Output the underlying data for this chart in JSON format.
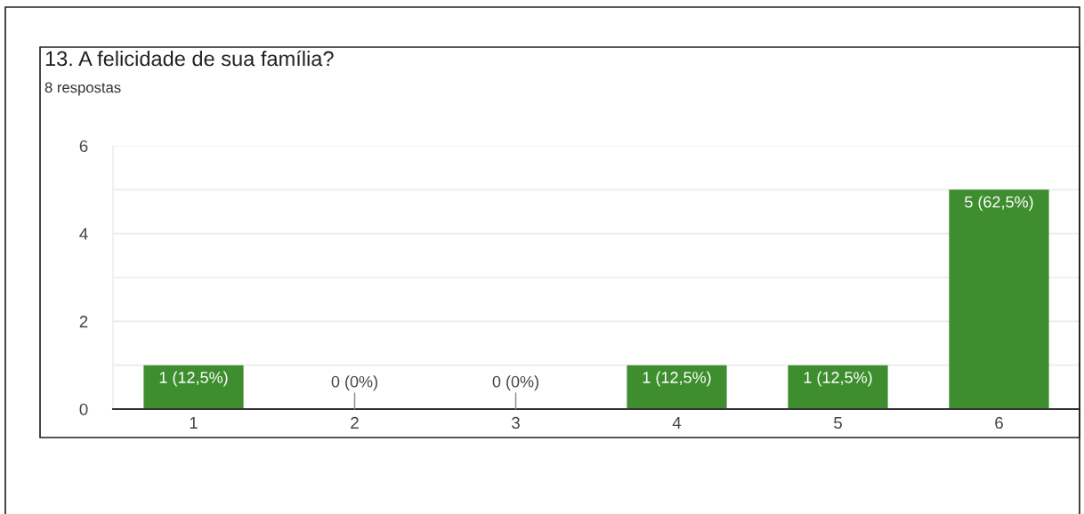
{
  "chart_data": {
    "type": "bar",
    "title": "13. A felicidade de sua família?",
    "subtitle": "8 respostas",
    "categories": [
      "1",
      "2",
      "3",
      "4",
      "5",
      "6"
    ],
    "values": [
      1,
      0,
      0,
      1,
      1,
      5
    ],
    "color": "#3e8e2f",
    "value_labels": [
      "1 (12,5%)",
      "0 (0%)",
      "0 (0%)",
      "1 (12,5%)",
      "1 (12,5%)",
      "5 (62,5%)"
    ],
    "ylim": [
      0,
      6
    ],
    "yticks": [
      0,
      {
        "value": 1,
        "label": null
      },
      2,
      {
        "value": 3,
        "label": null
      },
      4,
      {
        "value": 5,
        "label": null
      },
      6
    ],
    "grid": "y"
  }
}
